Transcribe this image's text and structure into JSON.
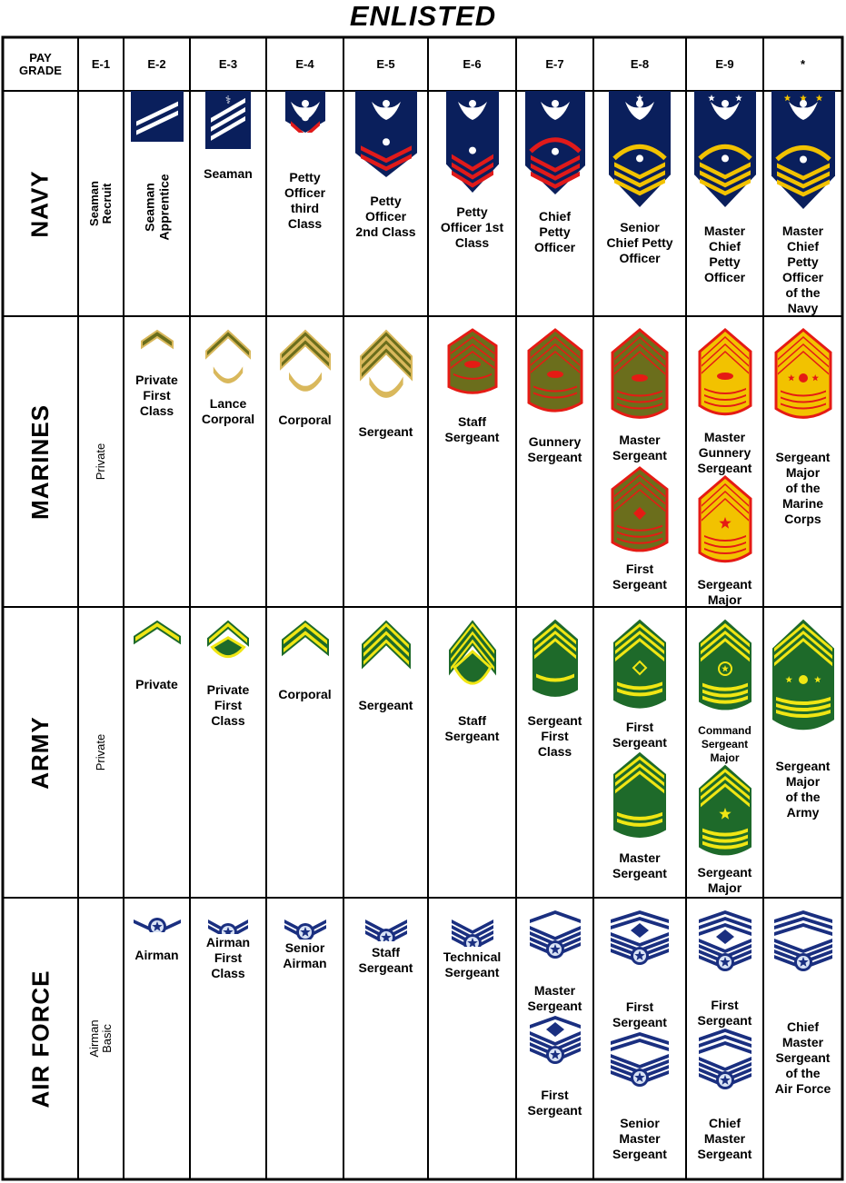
{
  "title": "ENLISTED",
  "header": {
    "pay_grade": "PAY\nGRADE",
    "grades": [
      "E-1",
      "E-2",
      "E-3",
      "E-4",
      "E-5",
      "E-6",
      "E-7",
      "E-8",
      "E-9",
      "*"
    ]
  },
  "colors": {
    "navy_blue": "#0a1f5c",
    "navy_red": "#e01a1a",
    "navy_gold": "#f2c200",
    "marine_olive": "#6b6e1c",
    "marine_tan": "#d9b85c",
    "marine_red": "#e51b14",
    "army_green": "#1e6a2a",
    "army_yellow": "#f0e614",
    "af_blue": "#1a2f80",
    "af_light": "#d9e3f5"
  },
  "rows": [
    {
      "branch": "NAVY",
      "e1": "Seaman\nRecruit",
      "items": [
        {
          "col": 2,
          "label": "Seaman\nApprentice",
          "icon": "seaman-apprentice-stripes-icon"
        },
        {
          "col": 3,
          "label": "Seaman",
          "icon": "seaman-stripes-icon"
        },
        {
          "col": 4,
          "label": "Petty\nOfficer\nthird\nClass",
          "icon": "petty-officer-3rd-eagle-chevron-icon"
        },
        {
          "col": 5,
          "label": "Petty\nOfficer\n2nd Class",
          "icon": "petty-officer-2nd-eagle-chevron-icon"
        },
        {
          "col": 6,
          "label": "Petty\nOfficer 1st\nClass",
          "icon": "petty-officer-1st-eagle-chevron-icon"
        },
        {
          "col": 7,
          "label": "Chief\nPetty\nOfficer",
          "icon": "chief-petty-officer-eagle-rocker-icon"
        },
        {
          "col": 8,
          "label": "Senior\nChief Petty\nOfficer",
          "icon": "senior-chief-petty-officer-eagle-rocker-icon"
        },
        {
          "col": 9,
          "label": "Master\nChief\nPetty\nOfficer",
          "icon": "master-chief-petty-officer-eagle-rocker-icon"
        },
        {
          "col": 10,
          "label": "Master\nChief\nPetty\nOfficer\nof the\nNavy",
          "icon": "mcpon-eagle-rocker-icon"
        }
      ]
    },
    {
      "branch": "MARINES",
      "e1": "Private",
      "items": [
        {
          "col": 2,
          "label": "Private\nFirst\nClass",
          "icon": "marine-pfc-chevron-icon"
        },
        {
          "col": 3,
          "label": "Lance\nCorporal",
          "icon": "lance-corporal-chevron-icon"
        },
        {
          "col": 4,
          "label": "Corporal",
          "icon": "marine-corporal-chevron-icon"
        },
        {
          "col": 5,
          "label": "Sergeant",
          "icon": "marine-sergeant-chevron-icon"
        },
        {
          "col": 6,
          "label": "Staff\nSergeant",
          "icon": "marine-staff-sergeant-chevron-icon"
        },
        {
          "col": 7,
          "label": "Gunnery\nSergeant",
          "icon": "gunnery-sergeant-chevron-icon"
        },
        {
          "col": 8,
          "label": "Master\nSergeant",
          "icon": "marine-master-sergeant-chevron-icon"
        },
        {
          "col": 8,
          "label": "First\nSergeant",
          "icon": "marine-first-sergeant-chevron-icon"
        },
        {
          "col": 9,
          "label": "Master\nGunnery\nSergeant",
          "icon": "master-gunnery-sergeant-chevron-icon"
        },
        {
          "col": 9,
          "label": "Sergeant\nMajor",
          "icon": "marine-sergeant-major-chevron-icon"
        },
        {
          "col": 10,
          "label": "Sergeant\nMajor\nof the\nMarine\nCorps",
          "icon": "sergeant-major-marine-corps-chevron-icon"
        }
      ]
    },
    {
      "branch": "ARMY",
      "e1": "Private",
      "items": [
        {
          "col": 2,
          "label": "Private",
          "icon": "army-private-chevron-icon"
        },
        {
          "col": 3,
          "label": "Private\nFirst\nClass",
          "icon": "army-pfc-chevron-icon"
        },
        {
          "col": 4,
          "label": "Corporal",
          "icon": "army-corporal-chevron-icon"
        },
        {
          "col": 5,
          "label": "Sergeant",
          "icon": "army-sergeant-chevron-icon"
        },
        {
          "col": 6,
          "label": "Staff\nSergeant",
          "icon": "army-staff-sergeant-chevron-icon"
        },
        {
          "col": 7,
          "label": "Sergeant\nFirst\nClass",
          "icon": "sergeant-first-class-chevron-icon"
        },
        {
          "col": 8,
          "label": "First\nSergeant",
          "icon": "army-first-sergeant-chevron-icon"
        },
        {
          "col": 8,
          "label": "Master\nSergeant",
          "icon": "army-master-sergeant-chevron-icon"
        },
        {
          "col": 9,
          "label": "Command\nSergeant\nMajor",
          "icon": "command-sergeant-major-chevron-icon"
        },
        {
          "col": 9,
          "label": "Sergeant\nMajor",
          "icon": "army-sergeant-major-chevron-icon"
        },
        {
          "col": 10,
          "label": "Sergeant\nMajor\nof the\nArmy",
          "icon": "sergeant-major-of-the-army-chevron-icon"
        }
      ]
    },
    {
      "branch": "AIR FORCE",
      "e1": "Airman Basic",
      "items": [
        {
          "col": 2,
          "label": "Airman",
          "icon": "airman-star-stripe-icon"
        },
        {
          "col": 3,
          "label": "Airman\nFirst\nClass",
          "icon": "airman-first-class-star-stripe-icon"
        },
        {
          "col": 4,
          "label": "Senior\nAirman",
          "icon": "senior-airman-star-stripe-icon"
        },
        {
          "col": 5,
          "label": "Staff\nSergeant",
          "icon": "af-staff-sergeant-star-stripe-icon"
        },
        {
          "col": 6,
          "label": "Technical\nSergeant",
          "icon": "technical-sergeant-star-stripe-icon"
        },
        {
          "col": 7,
          "label": "Master\nSergeant",
          "icon": "af-master-sergeant-star-stripe-icon"
        },
        {
          "col": 7,
          "label": "First\nSergeant",
          "icon": "af-first-sergeant-diamond-icon"
        },
        {
          "col": 8,
          "label": "First\nSergeant",
          "icon": "af-senior-first-sergeant-diamond-icon"
        },
        {
          "col": 8,
          "label": "Senior\nMaster\nSergeant",
          "icon": "senior-master-sergeant-star-stripe-icon"
        },
        {
          "col": 9,
          "label": "First\nSergeant",
          "icon": "af-chief-first-sergeant-diamond-icon"
        },
        {
          "col": 9,
          "label": "Chief\nMaster\nSergeant",
          "icon": "chief-master-sergeant-star-stripe-icon"
        },
        {
          "col": 10,
          "label": "Chief\nMaster\nSergeant\nof the\nAir Force",
          "icon": "cmsaf-star-stripe-icon"
        }
      ]
    }
  ]
}
